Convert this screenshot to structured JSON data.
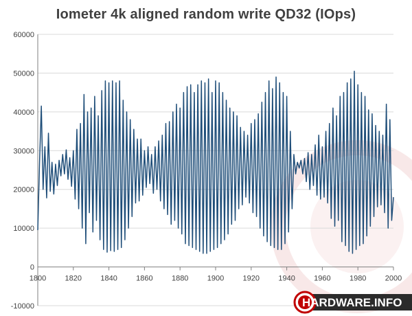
{
  "chart_data": {
    "type": "line",
    "title": "Iometer 4k aligned random write QD32 (IOps)",
    "xlabel": "",
    "ylabel": "",
    "xlim": [
      1800,
      2000
    ],
    "ylim": [
      -10000,
      60000
    ],
    "x_ticks": [
      1800,
      1820,
      1840,
      1860,
      1880,
      1900,
      1920,
      1940,
      1960,
      1980,
      2000
    ],
    "y_ticks": [
      -10000,
      0,
      10000,
      20000,
      30000,
      40000,
      50000,
      60000
    ],
    "grid": "horizontal",
    "legend": "none",
    "series": [
      {
        "color": "#1f4e79",
        "points": [
          [
            1800,
            9500
          ],
          [
            1801,
            27000
          ],
          [
            1802,
            41500
          ],
          [
            1803,
            20000
          ],
          [
            1804,
            31000
          ],
          [
            1805,
            17800
          ],
          [
            1806,
            34500
          ],
          [
            1807,
            19500
          ],
          [
            1808,
            27000
          ],
          [
            1809,
            18800
          ],
          [
            1810,
            26500
          ],
          [
            1811,
            21000
          ],
          [
            1812,
            27500
          ],
          [
            1813,
            23500
          ],
          [
            1814,
            29000
          ],
          [
            1815,
            24000
          ],
          [
            1816,
            30200
          ],
          [
            1817,
            22600
          ],
          [
            1818,
            28200
          ],
          [
            1819,
            20800
          ],
          [
            1820,
            30000
          ],
          [
            1821,
            17500
          ],
          [
            1822,
            35500
          ],
          [
            1823,
            15000
          ],
          [
            1824,
            37000
          ],
          [
            1825,
            10000
          ],
          [
            1826,
            44500
          ],
          [
            1827,
            6000
          ],
          [
            1828,
            40000
          ],
          [
            1829,
            14000
          ],
          [
            1830,
            41000
          ],
          [
            1831,
            9000
          ],
          [
            1832,
            44000
          ],
          [
            1833,
            12000
          ],
          [
            1834,
            39000
          ],
          [
            1835,
            7000
          ],
          [
            1836,
            45500
          ],
          [
            1837,
            4500
          ],
          [
            1838,
            48000
          ],
          [
            1839,
            3800
          ],
          [
            1840,
            47500
          ],
          [
            1841,
            4200
          ],
          [
            1842,
            48000
          ],
          [
            1843,
            4000
          ],
          [
            1844,
            47500
          ],
          [
            1845,
            4500
          ],
          [
            1846,
            48000
          ],
          [
            1847,
            5000
          ],
          [
            1848,
            43000
          ],
          [
            1849,
            7000
          ],
          [
            1850,
            40000
          ],
          [
            1851,
            10000
          ],
          [
            1852,
            38000
          ],
          [
            1853,
            13000
          ],
          [
            1854,
            35500
          ],
          [
            1855,
            16500
          ],
          [
            1856,
            33000
          ],
          [
            1857,
            17000
          ],
          [
            1858,
            33000
          ],
          [
            1859,
            18500
          ],
          [
            1860,
            30000
          ],
          [
            1861,
            20500
          ],
          [
            1862,
            31000
          ],
          [
            1863,
            21500
          ],
          [
            1864,
            29000
          ],
          [
            1865,
            19000
          ],
          [
            1866,
            31000
          ],
          [
            1867,
            20000
          ],
          [
            1868,
            32500
          ],
          [
            1869,
            17000
          ],
          [
            1870,
            34000
          ],
          [
            1871,
            15000
          ],
          [
            1872,
            37000
          ],
          [
            1873,
            13500
          ],
          [
            1874,
            37500
          ],
          [
            1875,
            11000
          ],
          [
            1876,
            40000
          ],
          [
            1877,
            12000
          ],
          [
            1878,
            42000
          ],
          [
            1879,
            10000
          ],
          [
            1880,
            41000
          ],
          [
            1881,
            8500
          ],
          [
            1882,
            45000
          ],
          [
            1883,
            6000
          ],
          [
            1884,
            46500
          ],
          [
            1885,
            5500
          ],
          [
            1886,
            47000
          ],
          [
            1887,
            5000
          ],
          [
            1888,
            45000
          ],
          [
            1889,
            4500
          ],
          [
            1890,
            47000
          ],
          [
            1891,
            4000
          ],
          [
            1892,
            48000
          ],
          [
            1893,
            3500
          ],
          [
            1894,
            47500
          ],
          [
            1895,
            3500
          ],
          [
            1896,
            48500
          ],
          [
            1897,
            4000
          ],
          [
            1898,
            45000
          ],
          [
            1899,
            4500
          ],
          [
            1900,
            48000
          ],
          [
            1901,
            5000
          ],
          [
            1902,
            47500
          ],
          [
            1903,
            6000
          ],
          [
            1904,
            45000
          ],
          [
            1905,
            7000
          ],
          [
            1906,
            43000
          ],
          [
            1907,
            8500
          ],
          [
            1908,
            41000
          ],
          [
            1909,
            11000
          ],
          [
            1910,
            40000
          ],
          [
            1911,
            12000
          ],
          [
            1912,
            39000
          ],
          [
            1913,
            15000
          ],
          [
            1914,
            36000
          ],
          [
            1915,
            16000
          ],
          [
            1916,
            35000
          ],
          [
            1917,
            18000
          ],
          [
            1918,
            34000
          ],
          [
            1919,
            16500
          ],
          [
            1920,
            37000
          ],
          [
            1921,
            14000
          ],
          [
            1922,
            38000
          ],
          [
            1923,
            13000
          ],
          [
            1924,
            39500
          ],
          [
            1925,
            10000
          ],
          [
            1926,
            42500
          ],
          [
            1927,
            8000
          ],
          [
            1928,
            45000
          ],
          [
            1929,
            6500
          ],
          [
            1930,
            48000
          ],
          [
            1931,
            5500
          ],
          [
            1932,
            46000
          ],
          [
            1933,
            5000
          ],
          [
            1934,
            49000
          ],
          [
            1935,
            4500
          ],
          [
            1936,
            47500
          ],
          [
            1937,
            4500
          ],
          [
            1938,
            45000
          ],
          [
            1939,
            6000
          ],
          [
            1940,
            44000
          ],
          [
            1941,
            9000
          ],
          [
            1942,
            35000
          ],
          [
            1943,
            15000
          ],
          [
            1944,
            29000
          ],
          [
            1945,
            24000
          ],
          [
            1946,
            27000
          ],
          [
            1947,
            25500
          ],
          [
            1948,
            27500
          ],
          [
            1949,
            24000
          ],
          [
            1950,
            28000
          ],
          [
            1951,
            22000
          ],
          [
            1952,
            29500
          ],
          [
            1953,
            20000
          ],
          [
            1954,
            29000
          ],
          [
            1955,
            21000
          ],
          [
            1956,
            31500
          ],
          [
            1957,
            18500
          ],
          [
            1958,
            34000
          ],
          [
            1959,
            17500
          ],
          [
            1960,
            31000
          ],
          [
            1961,
            18000
          ],
          [
            1962,
            35000
          ],
          [
            1963,
            16500
          ],
          [
            1964,
            37000
          ],
          [
            1965,
            12500
          ],
          [
            1966,
            41000
          ],
          [
            1967,
            10500
          ],
          [
            1968,
            39000
          ],
          [
            1969,
            12000
          ],
          [
            1970,
            44000
          ],
          [
            1971,
            6500
          ],
          [
            1972,
            45000
          ],
          [
            1973,
            5500
          ],
          [
            1974,
            47500
          ],
          [
            1975,
            4000
          ],
          [
            1976,
            48500
          ],
          [
            1977,
            3500
          ],
          [
            1978,
            50500
          ],
          [
            1979,
            4500
          ],
          [
            1980,
            47000
          ],
          [
            1981,
            5500
          ],
          [
            1982,
            45000
          ],
          [
            1983,
            6000
          ],
          [
            1984,
            44000
          ],
          [
            1985,
            8000
          ],
          [
            1986,
            40500
          ],
          [
            1987,
            10500
          ],
          [
            1988,
            39500
          ],
          [
            1989,
            13000
          ],
          [
            1990,
            36500
          ],
          [
            1991,
            15500
          ],
          [
            1992,
            35000
          ],
          [
            1993,
            16000
          ],
          [
            1994,
            34000
          ],
          [
            1995,
            14000
          ],
          [
            1996,
            42000
          ],
          [
            1997,
            10000
          ],
          [
            1998,
            38000
          ],
          [
            1999,
            12000
          ],
          [
            2000,
            18000
          ]
        ]
      }
    ]
  },
  "watermark": {
    "text": "HARDWARE.INFO",
    "accent_color": "#c00000"
  },
  "colors": {
    "line": "#1f4e79",
    "gridline": "#d9d9d9",
    "axis": "#7f7f7f",
    "text": "#404040"
  }
}
